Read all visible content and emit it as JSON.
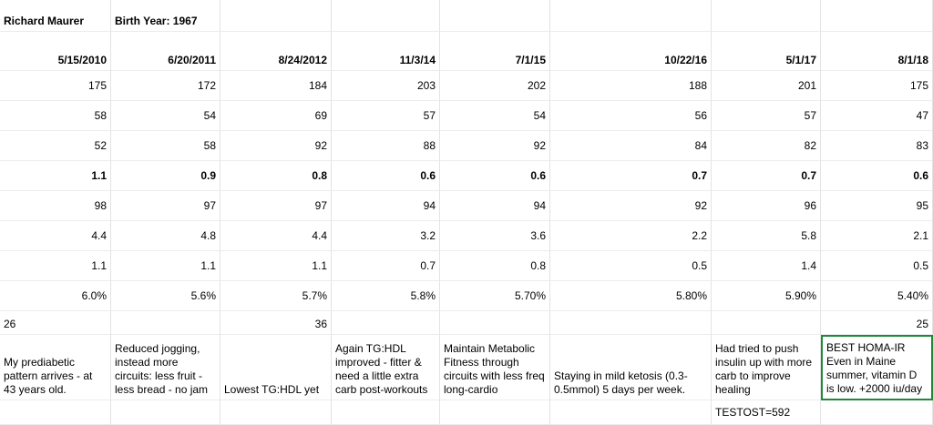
{
  "header": {
    "name": "Richard Maurer",
    "birth_year": "Birth Year: 1967"
  },
  "dates": [
    "5/15/2010",
    "6/20/2011",
    "8/24/2012",
    "11/3/14",
    "7/1/15",
    "10/22/16",
    "5/1/17",
    "8/1/18"
  ],
  "rows": [
    [
      "175",
      "172",
      "184",
      "203",
      "202",
      "188",
      "201",
      "175"
    ],
    [
      "58",
      "54",
      "69",
      "57",
      "54",
      "56",
      "57",
      "47"
    ],
    [
      "52",
      "58",
      "92",
      "88",
      "92",
      "84",
      "82",
      "83"
    ],
    [
      "1.1",
      "0.9",
      "0.8",
      "0.6",
      "0.6",
      "0.7",
      "0.7",
      "0.6"
    ],
    [
      "98",
      "97",
      "97",
      "94",
      "94",
      "92",
      "96",
      "95"
    ],
    [
      "4.4",
      "4.8",
      "4.4",
      "3.2",
      "3.6",
      "2.2",
      "5.8",
      "2.1"
    ],
    [
      "1.1",
      "1.1",
      "1.1",
      "0.7",
      "0.8",
      "0.5",
      "1.4",
      "0.5"
    ],
    [
      "6.0%",
      "5.6%",
      "5.7%",
      "5.8%",
      "5.70%",
      "5.80%",
      "5.90%",
      "5.40%"
    ]
  ],
  "homa_row": [
    "26",
    null,
    "36",
    null,
    null,
    null,
    null,
    "25"
  ],
  "notes": [
    "My prediabetic pattern arrives - at 43 years old.",
    "Reduced jogging, instead more circuits: less fruit - less bread - no jam",
    "Lowest TG:HDL yet",
    "Again TG:HDL improved - fitter & need a little extra carb post-workouts",
    "Maintain Metabolic Fitness through circuits with less freq long-cardio",
    "Staying in mild ketosis (0.3-0.5mmol) 5 days per week.",
    "Had tried to push insulin up with more carb to improve healing",
    "BEST HOMA-IR Even in Maine summer, vitamin D is low. +2000 iu/day"
  ],
  "footer_row": [
    null,
    null,
    null,
    null,
    null,
    null,
    "TESTOST=592",
    null
  ]
}
